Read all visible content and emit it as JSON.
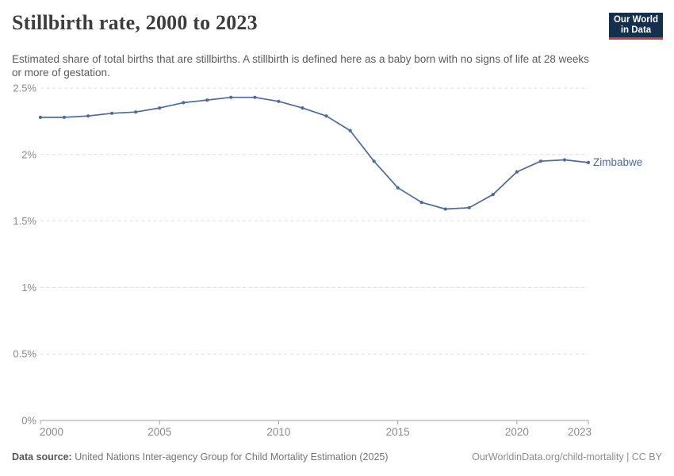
{
  "header": {
    "title": "Stillbirth rate, 2000 to 2023",
    "subtitle": "Estimated share of total births that are stillbirths. A stillbirth is defined here as a baby born with no signs of life at 28 weeks or more of gestation.",
    "logo": {
      "line1": "Our World",
      "line2": "in Data",
      "bg_color": "#15304F",
      "stripe_color": "#CE3E3C"
    }
  },
  "chart_data": {
    "type": "line",
    "title": "Stillbirth rate, 2000 to 2023",
    "xlabel": "",
    "ylabel": "",
    "xlim": [
      2000,
      2023
    ],
    "ylim": [
      0,
      2.5
    ],
    "grid": "horizontal-dashed",
    "legend_position": "end-of-line-label",
    "x_axis": {
      "ticks": [
        2000,
        2005,
        2010,
        2015,
        2020,
        2023
      ]
    },
    "y_axis": {
      "unit": "%",
      "ticks": [
        {
          "value": 0,
          "label": "0%"
        },
        {
          "value": 0.5,
          "label": "0.5%"
        },
        {
          "value": 1,
          "label": "1%"
        },
        {
          "value": 1.5,
          "label": "1.5%"
        },
        {
          "value": 2,
          "label": "2%"
        },
        {
          "value": 2.5,
          "label": "2.5%"
        }
      ]
    },
    "series": [
      {
        "name": "Zimbabwe",
        "color": "#4C6A9C",
        "x": [
          2000,
          2001,
          2002,
          2003,
          2004,
          2005,
          2006,
          2007,
          2008,
          2009,
          2010,
          2011,
          2012,
          2013,
          2014,
          2015,
          2016,
          2017,
          2018,
          2019,
          2020,
          2021,
          2022,
          2023
        ],
        "values": [
          2.28,
          2.28,
          2.29,
          2.31,
          2.32,
          2.35,
          2.39,
          2.41,
          2.43,
          2.43,
          2.4,
          2.35,
          2.29,
          2.18,
          1.95,
          1.75,
          1.64,
          1.59,
          1.6,
          1.7,
          1.87,
          1.95,
          1.96,
          1.94
        ]
      }
    ],
    "axis_colors": {
      "tick_label": "#8a8a8a",
      "axis_line": "#a1a1a1",
      "gridline": "#dedede"
    }
  },
  "footer": {
    "source_label": "Data source:",
    "source_text": "United Nations Inter-agency Group for Child Mortality Estimation (2025)",
    "rights": "OurWorldinData.org/child-mortality | CC BY"
  }
}
